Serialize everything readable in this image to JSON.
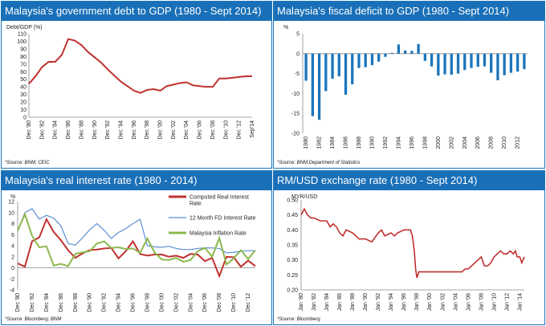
{
  "panels": [
    {
      "title": "Malaysia's government debt to GDP (1980 - Sept 2014)",
      "source": "*Source: BNM; CEIC"
    },
    {
      "title": "Malaysia's fiscal deficit to GDP (1980 - Sept 2014)",
      "source": "*Source: BNM;Department of Statistics"
    },
    {
      "title": "Malaysia's real interest rate (1980 - 2014)",
      "source": "*Source: Bloomberg; BNM"
    },
    {
      "title": "RM/USD exchange rate (1980 - Sept 2014)",
      "source": "*Source: Bloomberg"
    }
  ],
  "chart_data": [
    {
      "type": "line",
      "ylabel": "Debt/GDP (%)",
      "ylim": [
        0,
        110
      ],
      "yticks": [
        0,
        10,
        20,
        30,
        40,
        50,
        60,
        70,
        80,
        90,
        100,
        110
      ],
      "categories": [
        "Dec '80",
        "Dec '82",
        "Dec '84",
        "Dec '86",
        "Dec '88",
        "Dec '90",
        "Dec '92",
        "Dec '94",
        "Dec '96",
        "Dec '98",
        "Dec '00",
        "Dec '02",
        "Dec '04",
        "Dec '06",
        "Dec '08",
        "Dec '10",
        "Dec '12",
        "Sep'14"
      ],
      "x": [
        1980,
        1981,
        1982,
        1983,
        1984,
        1985,
        1986,
        1987,
        1988,
        1989,
        1990,
        1991,
        1992,
        1993,
        1994,
        1995,
        1996,
        1997,
        1998,
        1999,
        2000,
        2001,
        2002,
        2003,
        2004,
        2005,
        2006,
        2007,
        2008,
        2009,
        2010,
        2011,
        2012,
        2013,
        2014
      ],
      "series": [
        {
          "color": "#c0312f",
          "values": [
            44,
            54,
            66,
            73,
            73,
            82,
            103,
            101,
            95,
            86,
            79,
            72,
            63,
            55,
            47,
            41,
            35,
            32,
            36,
            37,
            35,
            41,
            43,
            45,
            46,
            42,
            41,
            40,
            40,
            51,
            51,
            52,
            53,
            54,
            54
          ]
        }
      ],
      "grid": false
    },
    {
      "type": "bar",
      "ylabel": "%",
      "ylim": [
        -20,
        5
      ],
      "yticks": [
        -20,
        -15,
        -10,
        -5,
        0,
        5
      ],
      "categories": [
        "1980",
        "1981",
        "1982",
        "1983",
        "1984",
        "1985",
        "1986",
        "1987",
        "1988",
        "1989",
        "1990",
        "1991",
        "1992",
        "1993",
        "1994",
        "1995",
        "1996",
        "1997",
        "1998",
        "1999",
        "2000",
        "2001",
        "2002",
        "2003",
        "2004",
        "2005",
        "2006",
        "2007",
        "2008",
        "2009",
        "2010",
        "2011",
        "2012",
        "2013"
      ],
      "tick_labels": [
        "1980",
        "1982",
        "1984",
        "1986",
        "1988",
        "1990",
        "1992",
        "1994",
        "1996",
        "1998",
        "2000",
        "2002",
        "2004",
        "2006",
        "2008",
        "2010",
        "2012"
      ],
      "values": [
        -6.8,
        -15.7,
        -16.6,
        -9.4,
        -6.3,
        -5.7,
        -10.3,
        -7.7,
        -3.6,
        -3.4,
        -2.9,
        -2.0,
        -0.8,
        0.2,
        2.3,
        0.8,
        0.7,
        2.4,
        -1.8,
        -3.2,
        -5.5,
        -5.2,
        -5.3,
        -5.0,
        -4.1,
        -3.6,
        -3.3,
        -3.2,
        -4.8,
        -6.7,
        -5.4,
        -4.8,
        -4.5,
        -3.9
      ],
      "color": "#1b75bb",
      "grid": false
    },
    {
      "type": "line",
      "ylabel": "%",
      "ylim": [
        -4,
        12
      ],
      "yticks": [
        -4,
        -2,
        0,
        2,
        4,
        6,
        8,
        10,
        12
      ],
      "categories": [
        "Dec '80",
        "Dec '82",
        "Dec '84",
        "Dec '86",
        "Dec '88",
        "Dec '90",
        "Dec '92",
        "Dec '94",
        "Dec '96",
        "Dec '98",
        "Dec '00",
        "Dec '02",
        "Dec '04",
        "Dec '06",
        "Dec '08",
        "Dec '10",
        "Dec '12"
      ],
      "x": [
        1980,
        1981,
        1982,
        1983,
        1984,
        1985,
        1986,
        1987,
        1988,
        1989,
        1990,
        1991,
        1992,
        1993,
        1994,
        1995,
        1996,
        1997,
        1998,
        1999,
        2000,
        2001,
        2002,
        2003,
        2004,
        2005,
        2006,
        2007,
        2008,
        2009,
        2010,
        2011,
        2012,
        2013
      ],
      "series": [
        {
          "name": "Computed Real Interest Rate",
          "color": "#c0312f",
          "values": [
            0.8,
            0.2,
            4.8,
            5.5,
            8.8,
            6.5,
            5.0,
            3.2,
            1.8,
            2.6,
            3.2,
            3.3,
            3.5,
            3.6,
            1.7,
            3.0,
            4.8,
            2.5,
            2.2,
            2.4,
            2.4,
            2.0,
            2.2,
            1.8,
            2.5,
            2.4,
            1.2,
            1.8,
            -1.5,
            2.0,
            1.9,
            0.2,
            1.3,
            0.3
          ]
        },
        {
          "name": "12 Month FD Interest Rate",
          "color": "#5b8ed6",
          "values": [
            6.6,
            10.0,
            10.7,
            8.8,
            9.5,
            9.0,
            7.6,
            4.4,
            4.1,
            5.4,
            6.9,
            8.0,
            6.8,
            5.3,
            6.4,
            7.1,
            8.0,
            8.8,
            4.0,
            3.8,
            3.7,
            3.9,
            3.5,
            3.3,
            3.3,
            3.5,
            3.6,
            3.6,
            3.5,
            2.7,
            2.8,
            3.0,
            3.1,
            3.1
          ]
        },
        {
          "name": "Malaysia Inflation Rate",
          "color": "#8cb84d",
          "values": [
            6.7,
            9.7,
            5.8,
            3.7,
            3.9,
            0.4,
            0.7,
            0.3,
            2.5,
            2.8,
            3.0,
            4.4,
            4.8,
            3.6,
            3.7,
            3.4,
            3.5,
            2.7,
            5.3,
            2.8,
            1.5,
            1.4,
            1.8,
            1.1,
            1.4,
            3.0,
            3.6,
            2.0,
            5.4,
            0.6,
            1.7,
            3.2,
            1.6,
            3.2
          ]
        }
      ],
      "legend": "top-right",
      "grid": false
    },
    {
      "type": "line",
      "ylabel": "MYR/USD",
      "ylim": [
        0.2,
        0.5
      ],
      "yticks": [
        "0.20",
        "0.25",
        "0.30",
        "0.35",
        "0.40",
        "0.45",
        "0.50"
      ],
      "categories": [
        "Jan '80",
        "Jan '82",
        "Jan '84",
        "Jan '86",
        "Jan '88",
        "Jan '90",
        "Jan '92",
        "Jan '94",
        "Jan '96",
        "Jan '98",
        "Jan '00",
        "Jan '02",
        "Jan '04",
        "Jan '06",
        "Jan '08",
        "Jan '10",
        "Jan '12",
        "Jan '14"
      ],
      "x": [
        1980,
        1980.5,
        1981,
        1981.5,
        1982,
        1983,
        1984,
        1984.5,
        1985,
        1985.5,
        1986,
        1986.5,
        1987,
        1988,
        1989,
        1990,
        1991,
        1992,
        1992.5,
        1993,
        1994,
        1994.5,
        1995,
        1996,
        1997,
        1997.3,
        1997.6,
        1997.8,
        1998,
        1998.3,
        1998.7,
        1999,
        2000,
        2002,
        2004,
        2005,
        2005.5,
        2006,
        2007,
        2008,
        2008.5,
        2009,
        2009.5,
        2010,
        2011,
        2011.5,
        2012,
        2012.5,
        2013,
        2013.3,
        2013.6,
        2014,
        2014.3,
        2014.7
      ],
      "series": [
        {
          "color": "#c0312f",
          "values": [
            0.45,
            0.47,
            0.45,
            0.44,
            0.44,
            0.43,
            0.43,
            0.41,
            0.42,
            0.41,
            0.39,
            0.38,
            0.4,
            0.39,
            0.37,
            0.37,
            0.36,
            0.39,
            0.4,
            0.38,
            0.39,
            0.38,
            0.39,
            0.4,
            0.4,
            0.38,
            0.33,
            0.27,
            0.24,
            0.26,
            0.26,
            0.26,
            0.26,
            0.26,
            0.26,
            0.26,
            0.27,
            0.27,
            0.29,
            0.31,
            0.28,
            0.28,
            0.29,
            0.31,
            0.33,
            0.32,
            0.32,
            0.33,
            0.32,
            0.33,
            0.31,
            0.31,
            0.29,
            0.31
          ]
        }
      ],
      "grid": false
    }
  ]
}
